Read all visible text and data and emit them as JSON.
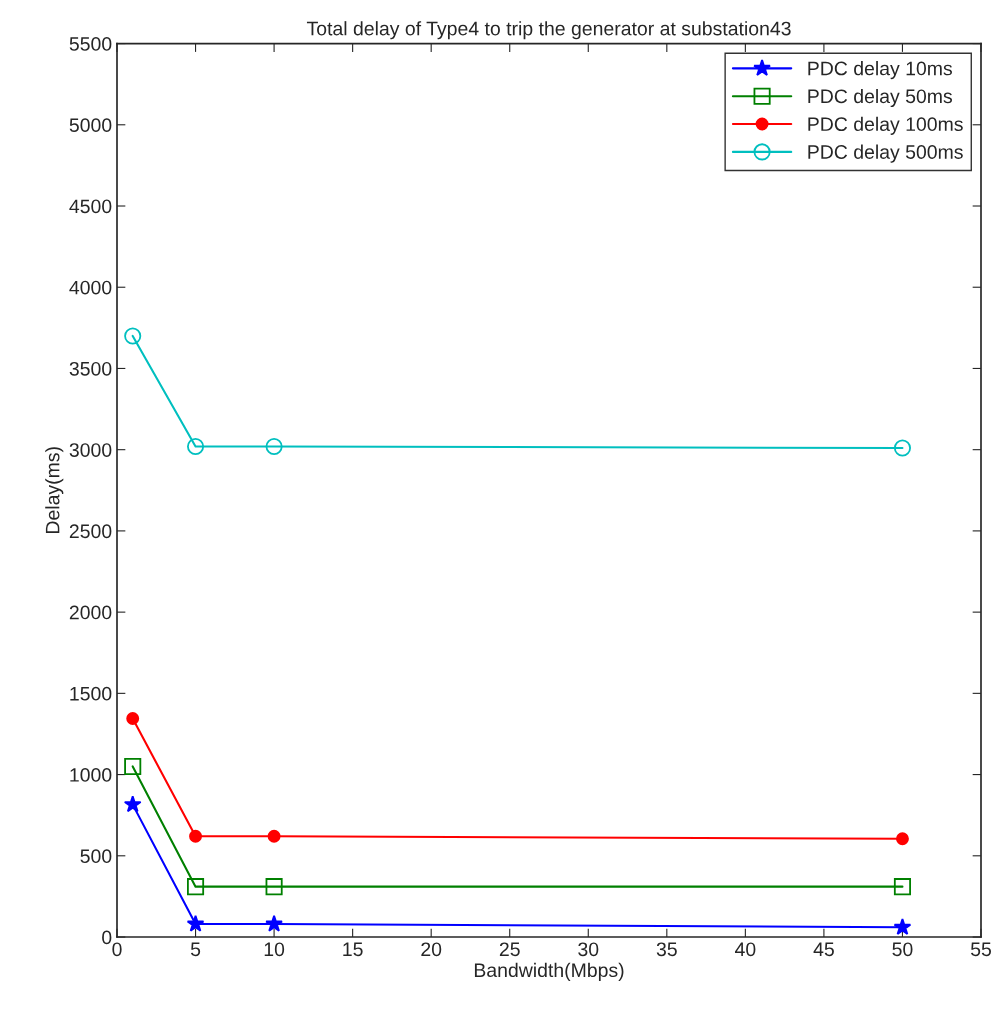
{
  "chart_data": {
    "type": "line",
    "title": "Total delay of Type4 to trip the generator at substation43",
    "xlabel": "Bandwidth(Mbps)",
    "ylabel": "Delay(ms)",
    "x": [
      1,
      5,
      10,
      50
    ],
    "series": [
      {
        "name": "PDC delay 10ms",
        "color": "#0000ff",
        "marker": "star",
        "values": [
          815,
          80,
          80,
          60
        ]
      },
      {
        "name": "PDC delay 50ms",
        "color": "#008000",
        "marker": "square",
        "values": [
          1050,
          310,
          310,
          310
        ]
      },
      {
        "name": "PDC delay 100ms",
        "color": "#ff0000",
        "marker": "circle_filled",
        "values": [
          1345,
          620,
          620,
          605
        ]
      },
      {
        "name": "PDC delay 500ms",
        "color": "#00bfbf",
        "marker": "circle",
        "values": [
          3700,
          3020,
          3020,
          3010
        ]
      }
    ],
    "xlim": [
      0,
      55
    ],
    "xticks": [
      0,
      5,
      10,
      15,
      20,
      25,
      30,
      35,
      40,
      45,
      50,
      55
    ],
    "ylim": [
      0,
      5500
    ],
    "yticks": [
      0,
      500,
      1000,
      1500,
      2000,
      2500,
      3000,
      3500,
      4000,
      4500,
      5000,
      5500
    ],
    "grid": false,
    "legend": "top right",
    "line_style": "solid"
  }
}
